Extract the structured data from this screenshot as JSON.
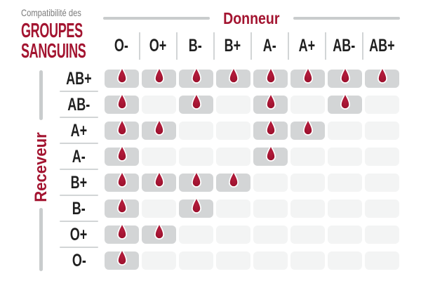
{
  "title": {
    "eyebrow": "Compatibilité des",
    "line1": "GROUPES",
    "line2": "SANGUINS"
  },
  "axes": {
    "donor_label": "Donneur",
    "receiver_label": "Receveur"
  },
  "icons": {
    "compatible_marker": "blood-drop-icon"
  },
  "colors": {
    "accent": "#a31430",
    "line": "#c9cccd",
    "sep": "#d2d5d6",
    "cellOn": "#d3d5d6",
    "cellOff": "#f3f4f4",
    "ink": "#1f1f1f",
    "muted": "#7b7b7b",
    "drop": "#a31430",
    "drop_outline": "#ffffff"
  },
  "chart_data": {
    "type": "heatmap",
    "title": "Compatibilité des GROUPES SANGUINS",
    "xlabel": "Donneur",
    "ylabel": "Receveur",
    "columns": [
      "O-",
      "O+",
      "B-",
      "B+",
      "A-",
      "A+",
      "AB-",
      "AB+"
    ],
    "rows": [
      "AB+",
      "AB-",
      "A+",
      "A-",
      "B+",
      "B-",
      "O+",
      "O-"
    ],
    "matrix": [
      [
        1,
        1,
        1,
        1,
        1,
        1,
        1,
        1
      ],
      [
        1,
        0,
        1,
        0,
        1,
        0,
        1,
        0
      ],
      [
        1,
        1,
        0,
        0,
        1,
        1,
        0,
        0
      ],
      [
        1,
        0,
        0,
        0,
        1,
        0,
        0,
        0
      ],
      [
        1,
        1,
        1,
        1,
        0,
        0,
        0,
        0
      ],
      [
        1,
        0,
        1,
        0,
        0,
        0,
        0,
        0
      ],
      [
        1,
        1,
        0,
        0,
        0,
        0,
        0,
        0
      ],
      [
        1,
        0,
        0,
        0,
        0,
        0,
        0,
        0
      ]
    ],
    "cell_marker": {
      "1": "blood-drop-icon",
      "0": "empty-cell"
    },
    "legend_position": "none",
    "grid": false
  }
}
